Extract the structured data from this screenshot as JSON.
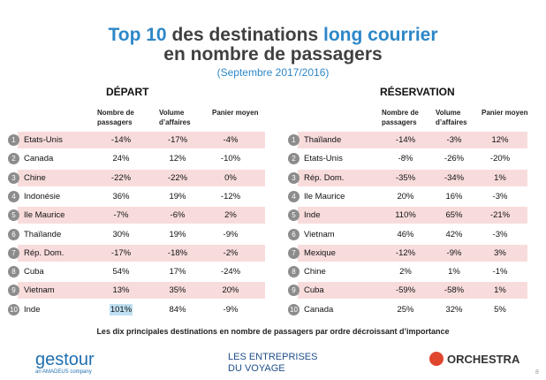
{
  "header": {
    "title_parts": [
      "Top 10",
      "des destinations",
      "long courrier"
    ],
    "title_line2": "en nombre de passagers",
    "subtitle": "(Septembre 2017/2016)"
  },
  "columns": [
    "Nombre de passagers",
    "Volume d’affaires",
    "Panier moyen"
  ],
  "tables": [
    {
      "title": "DÉPART",
      "rows": [
        [
          1,
          "Etats-Unis",
          "-14%",
          "-17%",
          "-4%"
        ],
        [
          2,
          "Canada",
          "24%",
          "12%",
          "-10%"
        ],
        [
          3,
          "Chine",
          "-22%",
          "-22%",
          "0%"
        ],
        [
          4,
          "Indonésie",
          "36%",
          "19%",
          "-12%"
        ],
        [
          5,
          "Ile Maurice",
          "-7%",
          "-6%",
          "2%"
        ],
        [
          6,
          "Thaïlande",
          "30%",
          "19%",
          "-9%"
        ],
        [
          7,
          "Rép. Dom.",
          "-17%",
          "-18%",
          "-2%"
        ],
        [
          8,
          "Cuba",
          "54%",
          "17%",
          "-24%"
        ],
        [
          9,
          "Vietnam",
          "13%",
          "35%",
          "20%"
        ],
        [
          10,
          "Inde",
          "101%",
          "84%",
          "-9%"
        ]
      ]
    },
    {
      "title": "RÉSERVATION",
      "rows": [
        [
          1,
          "Thaïlande",
          "-14%",
          "-3%",
          "12%"
        ],
        [
          2,
          "Etats-Unis",
          "-8%",
          "-26%",
          "-20%"
        ],
        [
          3,
          "Rép. Dom.",
          "-35%",
          "-34%",
          "1%"
        ],
        [
          4,
          "Ile Maurice",
          "20%",
          "16%",
          "-3%"
        ],
        [
          5,
          "Inde",
          "110%",
          "65%",
          "-21%"
        ],
        [
          6,
          "Vietnam",
          "46%",
          "42%",
          "-3%"
        ],
        [
          7,
          "Mexique",
          "-12%",
          "-9%",
          "3%"
        ],
        [
          8,
          "Chine",
          "2%",
          "1%",
          "-1%"
        ],
        [
          9,
          "Cuba",
          "-59%",
          "-58%",
          "1%"
        ],
        [
          10,
          "Canada",
          "25%",
          "32%",
          "5%"
        ]
      ]
    }
  ],
  "caption": "Les dix principales destinations en nombre de passagers par ordre décroissant d’importance",
  "footer": {
    "logo1": "gestour",
    "logo1_sub": "an AMADEUS company",
    "logo2_line1": "LES ENTREPRISES",
    "logo2_line2": "DU VOYAGE",
    "logo3": "ORCHESTRA",
    "page": "8"
  }
}
